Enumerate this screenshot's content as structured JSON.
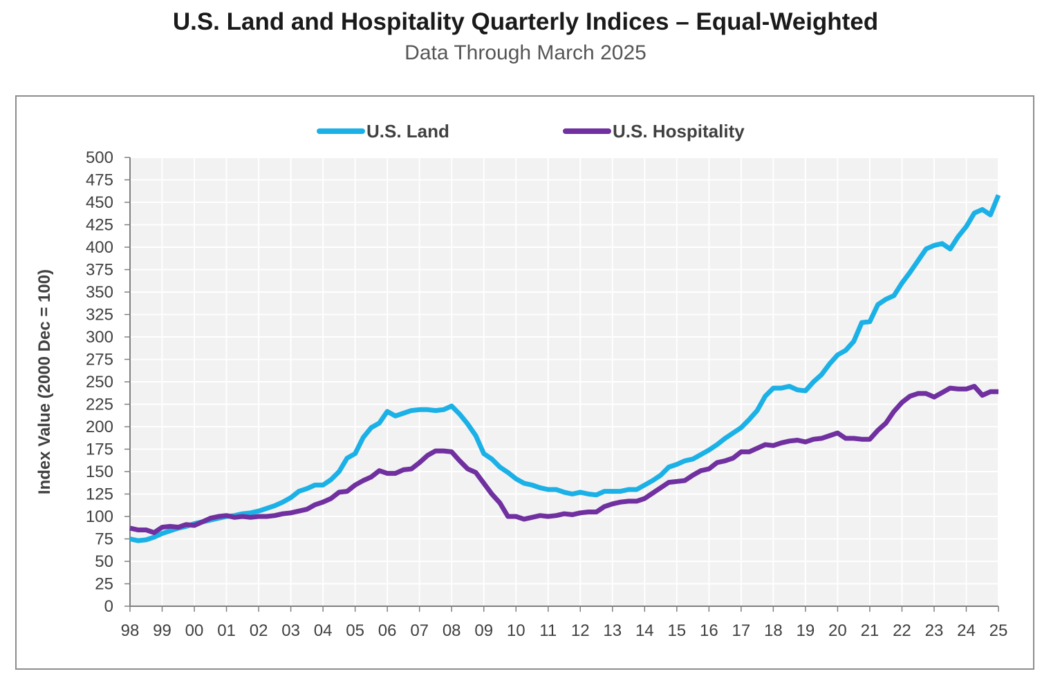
{
  "chart_data": {
    "type": "line",
    "title": "U.S. Land and Hospitality Quarterly Indices – Equal-Weighted",
    "subtitle": "Data Through March 2025",
    "xlabel": "",
    "ylabel": "Index Value (2000 Dec = 100)",
    "ylim": [
      0,
      500
    ],
    "yticks": [
      0,
      25,
      50,
      75,
      100,
      125,
      150,
      175,
      200,
      225,
      250,
      275,
      300,
      325,
      350,
      375,
      400,
      425,
      450,
      475,
      500
    ],
    "xlim": [
      1998,
      2025
    ],
    "xtick_labels": [
      "98",
      "99",
      "00",
      "01",
      "02",
      "03",
      "04",
      "05",
      "06",
      "07",
      "08",
      "09",
      "10",
      "11",
      "12",
      "13",
      "14",
      "15",
      "16",
      "17",
      "18",
      "19",
      "20",
      "21",
      "22",
      "23",
      "24",
      "25"
    ],
    "grid": true,
    "legend_position": "top-center",
    "series": [
      {
        "name": "U.S. Land",
        "color": "#1BB1E7",
        "x": [
          1998.0,
          1998.25,
          1998.5,
          1998.75,
          1999.0,
          1999.25,
          1999.5,
          1999.75,
          2000.0,
          2000.25,
          2000.5,
          2000.75,
          2001.0,
          2001.25,
          2001.5,
          2001.75,
          2002.0,
          2002.25,
          2002.5,
          2002.75,
          2003.0,
          2003.25,
          2003.5,
          2003.75,
          2004.0,
          2004.25,
          2004.5,
          2004.75,
          2005.0,
          2005.25,
          2005.5,
          2005.75,
          2006.0,
          2006.25,
          2006.5,
          2006.75,
          2007.0,
          2007.25,
          2007.5,
          2007.75,
          2008.0,
          2008.25,
          2008.5,
          2008.75,
          2009.0,
          2009.25,
          2009.5,
          2009.75,
          2010.0,
          2010.25,
          2010.5,
          2010.75,
          2011.0,
          2011.25,
          2011.5,
          2011.75,
          2012.0,
          2012.25,
          2012.5,
          2012.75,
          2013.0,
          2013.25,
          2013.5,
          2013.75,
          2014.0,
          2014.25,
          2014.5,
          2014.75,
          2015.0,
          2015.25,
          2015.5,
          2015.75,
          2016.0,
          2016.25,
          2016.5,
          2016.75,
          2017.0,
          2017.25,
          2017.5,
          2017.75,
          2018.0,
          2018.25,
          2018.5,
          2018.75,
          2019.0,
          2019.25,
          2019.5,
          2019.75,
          2020.0,
          2020.25,
          2020.5,
          2020.75,
          2021.0,
          2021.25,
          2021.5,
          2021.75,
          2022.0,
          2022.25,
          2022.5,
          2022.75,
          2023.0,
          2023.25,
          2023.5,
          2023.75,
          2024.0,
          2024.25,
          2024.5,
          2024.75,
          2025.0
        ],
        "values": [
          75,
          73,
          74,
          77,
          81,
          84,
          87,
          89,
          92,
          94,
          96,
          98,
          100,
          101,
          103,
          104,
          106,
          109,
          112,
          116,
          121,
          128,
          131,
          135,
          135,
          141,
          150,
          165,
          170,
          188,
          199,
          204,
          217,
          212,
          215,
          218,
          219,
          219,
          218,
          219,
          223,
          214,
          203,
          190,
          170,
          164,
          155,
          149,
          142,
          137,
          135,
          132,
          130,
          130,
          127,
          125,
          127,
          125,
          124,
          128,
          128,
          128,
          130,
          130,
          135,
          140,
          146,
          155,
          158,
          162,
          164,
          169,
          174,
          180,
          187,
          193,
          199,
          208,
          218,
          234,
          243,
          243,
          245,
          241,
          240,
          250,
          258,
          270,
          280,
          285,
          295,
          316,
          317,
          336,
          342,
          346,
          360,
          372,
          385,
          398,
          402,
          404,
          398,
          412,
          423,
          438,
          442,
          436,
          458
        ]
      },
      {
        "name": "U.S. Hospitality",
        "color": "#7030A0",
        "x": [
          1998.0,
          1998.25,
          1998.5,
          1998.75,
          1999.0,
          1999.25,
          1999.5,
          1999.75,
          2000.0,
          2000.25,
          2000.5,
          2000.75,
          2001.0,
          2001.25,
          2001.5,
          2001.75,
          2002.0,
          2002.25,
          2002.5,
          2002.75,
          2003.0,
          2003.25,
          2003.5,
          2003.75,
          2004.0,
          2004.25,
          2004.5,
          2004.75,
          2005.0,
          2005.25,
          2005.5,
          2005.75,
          2006.0,
          2006.25,
          2006.5,
          2006.75,
          2007.0,
          2007.25,
          2007.5,
          2007.75,
          2008.0,
          2008.25,
          2008.5,
          2008.75,
          2009.0,
          2009.25,
          2009.5,
          2009.75,
          2010.0,
          2010.25,
          2010.5,
          2010.75,
          2011.0,
          2011.25,
          2011.5,
          2011.75,
          2012.0,
          2012.25,
          2012.5,
          2012.75,
          2013.0,
          2013.25,
          2013.5,
          2013.75,
          2014.0,
          2014.25,
          2014.5,
          2014.75,
          2015.0,
          2015.25,
          2015.5,
          2015.75,
          2016.0,
          2016.25,
          2016.5,
          2016.75,
          2017.0,
          2017.25,
          2017.5,
          2017.75,
          2018.0,
          2018.25,
          2018.5,
          2018.75,
          2019.0,
          2019.25,
          2019.5,
          2019.75,
          2020.0,
          2020.25,
          2020.5,
          2020.75,
          2021.0,
          2021.25,
          2021.5,
          2021.75,
          2022.0,
          2022.25,
          2022.5,
          2022.75,
          2023.0,
          2023.25,
          2023.5,
          2023.75,
          2024.0,
          2024.25,
          2024.5,
          2024.75,
          2025.0
        ],
        "values": [
          87,
          85,
          85,
          82,
          88,
          89,
          88,
          91,
          90,
          94,
          98,
          100,
          101,
          99,
          100,
          99,
          100,
          100,
          101,
          103,
          104,
          106,
          108,
          113,
          116,
          120,
          127,
          128,
          135,
          140,
          144,
          151,
          148,
          148,
          152,
          153,
          160,
          168,
          173,
          173,
          172,
          162,
          153,
          149,
          137,
          125,
          115,
          100,
          100,
          97,
          99,
          101,
          100,
          101,
          103,
          102,
          104,
          105,
          105,
          111,
          114,
          116,
          117,
          117,
          120,
          126,
          132,
          138,
          139,
          140,
          146,
          151,
          153,
          160,
          162,
          165,
          172,
          172,
          176,
          180,
          179,
          182,
          184,
          185,
          183,
          186,
          187,
          190,
          193,
          187,
          187,
          186,
          186,
          196,
          204,
          217,
          227,
          234,
          237,
          237,
          233,
          238,
          243,
          242,
          242,
          245,
          235,
          239,
          239
        ]
      }
    ]
  }
}
